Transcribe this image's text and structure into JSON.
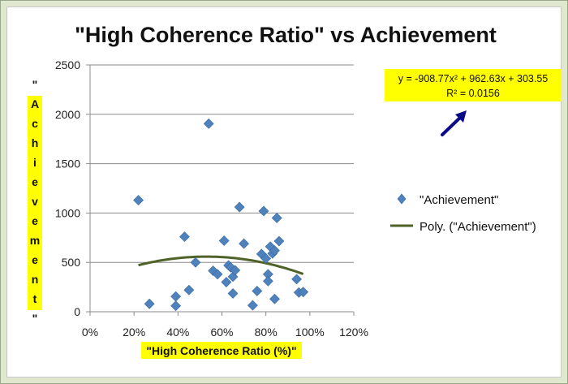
{
  "chart_data": {
    "type": "scatter",
    "title": "\"High Coherence Ratio\" vs Achievement",
    "xlabel": "\"High Coherence Ratio (%)\"",
    "ylabel": "\"Achievement\"",
    "xlim": [
      0,
      1.2
    ],
    "ylim": [
      0,
      2500
    ],
    "x_ticks": [
      0,
      0.2,
      0.4,
      0.6,
      0.8,
      1.0,
      1.2
    ],
    "x_tick_labels": [
      "0%",
      "20%",
      "40%",
      "60%",
      "80%",
      "100%",
      "120%"
    ],
    "y_ticks": [
      0,
      500,
      1000,
      1500,
      2000,
      2500
    ],
    "y_tick_labels": [
      "0",
      "500",
      "1000",
      "1500",
      "2000",
      "2500"
    ],
    "grid": "horizontal",
    "legend_position": "right",
    "series": [
      {
        "name": "\"Achievement\"",
        "marker": "diamond",
        "color": "#4f81bd",
        "x": [
          0.22,
          0.27,
          0.39,
          0.39,
          0.43,
          0.45,
          0.48,
          0.54,
          0.56,
          0.58,
          0.61,
          0.62,
          0.63,
          0.64,
          0.65,
          0.65,
          0.66,
          0.68,
          0.7,
          0.74,
          0.76,
          0.78,
          0.79,
          0.8,
          0.81,
          0.81,
          0.82,
          0.83,
          0.84,
          0.85,
          0.84,
          0.86,
          0.94,
          0.95,
          0.97
        ],
        "y": [
          1130,
          80,
          155,
          60,
          760,
          220,
          500,
          1905,
          415,
          380,
          720,
          300,
          470,
          450,
          185,
          355,
          420,
          1060,
          690,
          65,
          210,
          585,
          1020,
          540,
          380,
          310,
          660,
          590,
          130,
          950,
          620,
          715,
          330,
          195,
          200
        ]
      },
      {
        "name": "Poly. (\"Achievement\")",
        "type": "trendline",
        "color": "#4f6228",
        "x_range": [
          0.22,
          0.97
        ],
        "coefficients": {
          "a": -908.77,
          "b": 962.63,
          "c": 303.55
        }
      }
    ],
    "annotation": {
      "equation": "y = -908.77x² + 962.63x + 303.55",
      "r_squared": "R² = 0.0156"
    }
  }
}
